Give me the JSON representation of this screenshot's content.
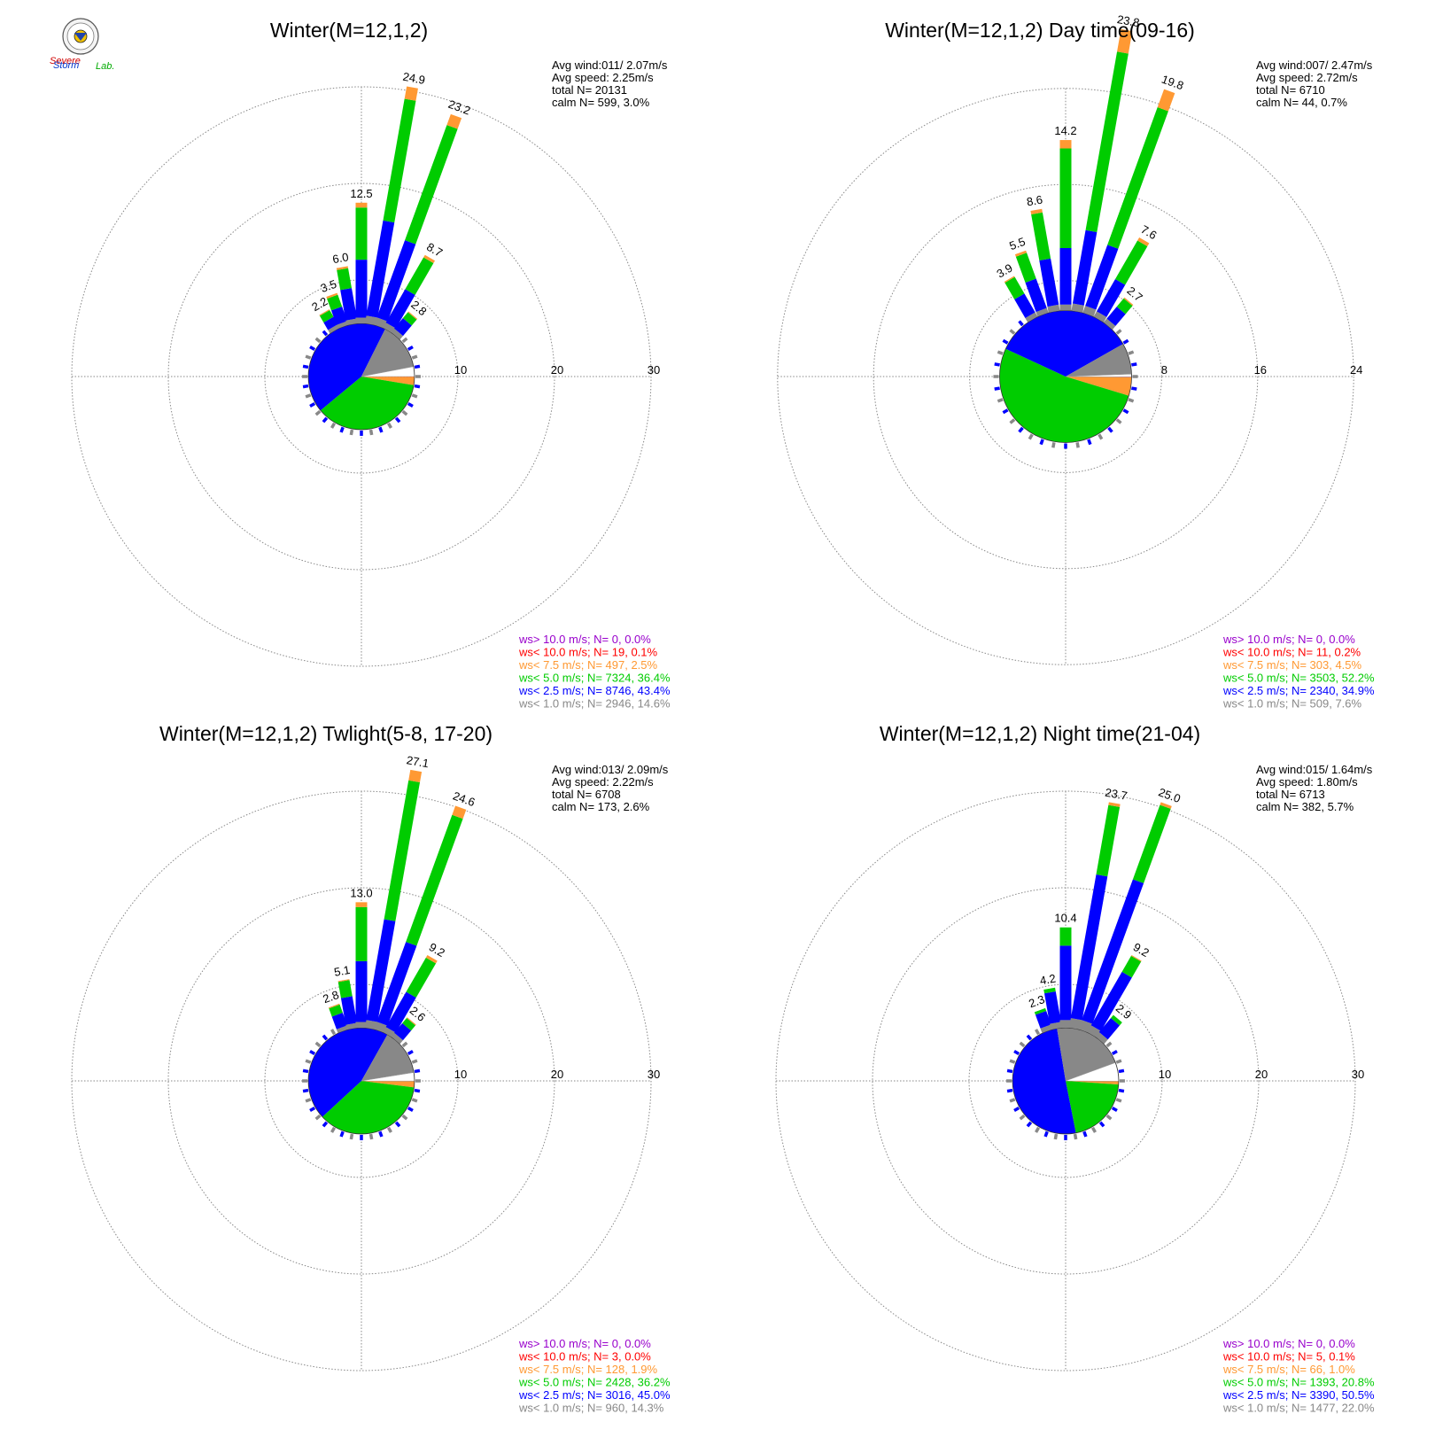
{
  "colors": {
    "ws_gt10": "#9900cc",
    "ws_lt10": "#ff0000",
    "ws_lt7_5": "#ff9933",
    "ws_lt5": "#00cc00",
    "ws_lt2_5": "#0000ff",
    "ws_lt1": "#888888",
    "grid": "#888888"
  },
  "logo": {
    "text_severe": "Severe",
    "text_storm": "Storm",
    "text_lab": "Lab."
  },
  "chart_data": [
    {
      "type": "windrose",
      "title": "Winter(M=12,1,2)",
      "rings": [
        10,
        20,
        30
      ],
      "ring_labels": [
        "10",
        "20",
        "30"
      ],
      "stats": {
        "avg_wind": "Avg wind:011/ 2.07m/s",
        "avg_speed": "Avg speed: 2.25m/s",
        "total": "total N=      20131",
        "calm": "calm N=    599,   3.0%"
      },
      "petals": [
        {
          "dir": 330,
          "label": "2.2",
          "segs": [
            0.4,
            0.9,
            0.8,
            0.1
          ]
        },
        {
          "dir": 340,
          "label": "3.5",
          "segs": [
            0.4,
            1.6,
            1.3,
            0.2
          ]
        },
        {
          "dir": 350,
          "label": "6.0",
          "segs": [
            0.5,
            3.2,
            2.1,
            0.2
          ]
        },
        {
          "dir": 0,
          "label": "12.5",
          "segs": [
            0.6,
            6.0,
            5.4,
            0.5
          ]
        },
        {
          "dir": 10,
          "label": "24.9",
          "segs": [
            0.8,
            10.0,
            12.8,
            1.3
          ]
        },
        {
          "dir": 20,
          "label": "23.2",
          "segs": [
            0.8,
            8.5,
            12.7,
            1.2
          ]
        },
        {
          "dir": 30,
          "label": "8.7",
          "segs": [
            0.6,
            4.0,
            3.8,
            0.3
          ]
        },
        {
          "dir": 40,
          "label": "2.8",
          "segs": [
            0.5,
            1.4,
            0.8,
            0.1
          ]
        }
      ],
      "pie": [
        {
          "cls": "ws_lt10",
          "frac": 0.001
        },
        {
          "cls": "ws_lt7_5",
          "frac": 0.025
        },
        {
          "cls": "ws_lt5",
          "frac": 0.364
        },
        {
          "cls": "ws_lt2_5",
          "frac": 0.434
        },
        {
          "cls": "ws_lt1",
          "frac": 0.146
        },
        {
          "cls": "calm",
          "frac": 0.03
        }
      ],
      "legend": [
        {
          "cls": "ws_gt10",
          "text": "ws> 10.0 m/s; N=    0,  0.0%"
        },
        {
          "cls": "ws_lt10",
          "text": "ws< 10.0 m/s; N=   19,  0.1%"
        },
        {
          "cls": "ws_lt7_5",
          "text": "ws<  7.5 m/s; N=  497,  2.5%"
        },
        {
          "cls": "ws_lt5",
          "text": "ws<  5.0 m/s; N= 7324, 36.4%"
        },
        {
          "cls": "ws_lt2_5",
          "text": "ws<  2.5 m/s; N= 8746, 43.4%"
        },
        {
          "cls": "ws_lt1",
          "text": "ws<  1.0 m/s; N= 2946, 14.6%"
        }
      ]
    },
    {
      "type": "windrose",
      "title": "Winter(M=12,1,2) Day time(09-16)",
      "rings": [
        8,
        16,
        24
      ],
      "ring_labels": [
        "8",
        "16",
        "24"
      ],
      "stats": {
        "avg_wind": "Avg wind:007/ 2.47m/s",
        "avg_speed": "Avg speed: 2.72m/s",
        "total": "total N=       6710",
        "calm": "calm N=     44,   0.7%"
      },
      "petals": [
        {
          "dir": 330,
          "label": "3.9",
          "segs": [
            0.4,
            1.8,
            1.6,
            0.1
          ]
        },
        {
          "dir": 340,
          "label": "5.5",
          "segs": [
            0.4,
            2.6,
            2.3,
            0.2
          ]
        },
        {
          "dir": 350,
          "label": "8.6",
          "segs": [
            0.5,
            3.9,
            3.9,
            0.3
          ]
        },
        {
          "dir": 0,
          "label": "14.2",
          "segs": [
            0.5,
            4.7,
            8.3,
            0.7
          ]
        },
        {
          "dir": 10,
          "label": "23.8",
          "segs": [
            0.6,
            6.2,
            15.1,
            1.9
          ]
        },
        {
          "dir": 20,
          "label": "19.8",
          "segs": [
            0.6,
            5.4,
            12.2,
            1.6
          ]
        },
        {
          "dir": 30,
          "label": "7.6",
          "segs": [
            0.5,
            3.1,
            3.7,
            0.3
          ]
        },
        {
          "dir": 40,
          "label": "2.7",
          "segs": [
            0.4,
            1.3,
            0.9,
            0.1
          ]
        }
      ],
      "pie": [
        {
          "cls": "ws_lt10",
          "frac": 0.002
        },
        {
          "cls": "ws_lt7_5",
          "frac": 0.045
        },
        {
          "cls": "ws_lt5",
          "frac": 0.522
        },
        {
          "cls": "ws_lt2_5",
          "frac": 0.349
        },
        {
          "cls": "ws_lt1",
          "frac": 0.076
        },
        {
          "cls": "calm",
          "frac": 0.007
        }
      ],
      "legend": [
        {
          "cls": "ws_gt10",
          "text": "ws> 10.0 m/s; N=    0,  0.0%"
        },
        {
          "cls": "ws_lt10",
          "text": "ws< 10.0 m/s; N=   11,  0.2%"
        },
        {
          "cls": "ws_lt7_5",
          "text": "ws<  7.5 m/s; N=  303,  4.5%"
        },
        {
          "cls": "ws_lt5",
          "text": "ws<  5.0 m/s; N= 3503, 52.2%"
        },
        {
          "cls": "ws_lt2_5",
          "text": "ws<  2.5 m/s; N= 2340, 34.9%"
        },
        {
          "cls": "ws_lt1",
          "text": "ws<  1.0 m/s; N=  509,  7.6%"
        }
      ]
    },
    {
      "type": "windrose",
      "title": "Winter(M=12,1,2) Twlight(5-8, 17-20)",
      "rings": [
        10,
        20,
        30
      ],
      "ring_labels": [
        "10",
        "20",
        "30"
      ],
      "stats": {
        "avg_wind": "Avg wind:013/ 2.09m/s",
        "avg_speed": "Avg speed: 2.22m/s",
        "total": "total N=       6708",
        "calm": "calm N=    173,   2.6%"
      },
      "petals": [
        {
          "dir": 340,
          "label": "2.8",
          "segs": [
            0.4,
            1.4,
            0.9,
            0.1
          ]
        },
        {
          "dir": 350,
          "label": "5.1",
          "segs": [
            0.5,
            2.8,
            1.7,
            0.1
          ]
        },
        {
          "dir": 0,
          "label": "13.0",
          "segs": [
            0.6,
            6.3,
            5.6,
            0.5
          ]
        },
        {
          "dir": 10,
          "label": "27.1",
          "segs": [
            0.8,
            10.6,
            14.6,
            1.1
          ]
        },
        {
          "dir": 20,
          "label": "24.6",
          "segs": [
            0.8,
            8.8,
            14.0,
            1.0
          ]
        },
        {
          "dir": 30,
          "label": "9.2",
          "segs": [
            0.6,
            4.2,
            4.1,
            0.3
          ]
        },
        {
          "dir": 40,
          "label": "2.6",
          "segs": [
            0.5,
            1.3,
            0.7,
            0.1
          ]
        }
      ],
      "pie": [
        {
          "cls": "ws_lt10",
          "frac": 0.0005
        },
        {
          "cls": "ws_lt7_5",
          "frac": 0.019
        },
        {
          "cls": "ws_lt5",
          "frac": 0.362
        },
        {
          "cls": "ws_lt2_5",
          "frac": 0.45
        },
        {
          "cls": "ws_lt1",
          "frac": 0.143
        },
        {
          "cls": "calm",
          "frac": 0.026
        }
      ],
      "legend": [
        {
          "cls": "ws_gt10",
          "text": "ws> 10.0 m/s; N=    0,  0.0%"
        },
        {
          "cls": "ws_lt10",
          "text": "ws< 10.0 m/s; N=    3,  0.0%"
        },
        {
          "cls": "ws_lt7_5",
          "text": "ws<  7.5 m/s; N=  128,  1.9%"
        },
        {
          "cls": "ws_lt5",
          "text": "ws<  5.0 m/s; N= 2428, 36.2%"
        },
        {
          "cls": "ws_lt2_5",
          "text": "ws<  2.5 m/s; N= 3016, 45.0%"
        },
        {
          "cls": "ws_lt1",
          "text": "ws<  1.0 m/s; N=  960, 14.3%"
        }
      ]
    },
    {
      "type": "windrose",
      "title": "Winter(M=12,1,2) Night time(21-04)",
      "rings": [
        10,
        20,
        30
      ],
      "ring_labels": [
        "10",
        "20",
        "30"
      ],
      "stats": {
        "avg_wind": "Avg wind:015/ 1.64m/s",
        "avg_speed": "Avg speed: 1.80m/s",
        "total": "total N=       6713",
        "calm": "calm N=    382,   5.7%"
      },
      "petals": [
        {
          "dir": 340,
          "label": "2.3",
          "segs": [
            0.5,
            1.5,
            0.3,
            0.0
          ]
        },
        {
          "dir": 350,
          "label": "4.2",
          "segs": [
            0.6,
            3.2,
            0.4,
            0.0
          ]
        },
        {
          "dir": 0,
          "label": "10.4",
          "segs": [
            0.8,
            7.7,
            1.9,
            0.0
          ]
        },
        {
          "dir": 10,
          "label": "23.7",
          "segs": [
            1.0,
            15.1,
            7.3,
            0.3
          ]
        },
        {
          "dir": 20,
          "label": "25.0",
          "segs": [
            1.0,
            15.5,
            8.2,
            0.3
          ]
        },
        {
          "dir": 30,
          "label": "9.2",
          "segs": [
            0.8,
            6.4,
            1.9,
            0.1
          ]
        },
        {
          "dir": 40,
          "label": "2.9",
          "segs": [
            0.6,
            1.9,
            0.4,
            0.0
          ]
        }
      ],
      "pie": [
        {
          "cls": "ws_lt10",
          "frac": 0.001
        },
        {
          "cls": "ws_lt7_5",
          "frac": 0.01
        },
        {
          "cls": "ws_lt5",
          "frac": 0.208
        },
        {
          "cls": "ws_lt2_5",
          "frac": 0.505
        },
        {
          "cls": "ws_lt1",
          "frac": 0.22
        },
        {
          "cls": "calm",
          "frac": 0.057
        }
      ],
      "legend": [
        {
          "cls": "ws_gt10",
          "text": "ws> 10.0 m/s; N=    0,  0.0%"
        },
        {
          "cls": "ws_lt10",
          "text": "ws< 10.0 m/s; N=    5,  0.1%"
        },
        {
          "cls": "ws_lt7_5",
          "text": "ws<  7.5 m/s; N=   66,  1.0%"
        },
        {
          "cls": "ws_lt5",
          "text": "ws<  5.0 m/s; N= 1393, 20.8%"
        },
        {
          "cls": "ws_lt2_5",
          "text": "ws<  2.5 m/s; N= 3390, 50.5%"
        },
        {
          "cls": "ws_lt1",
          "text": "ws<  1.0 m/s; N= 1477, 22.0%"
        }
      ]
    }
  ]
}
